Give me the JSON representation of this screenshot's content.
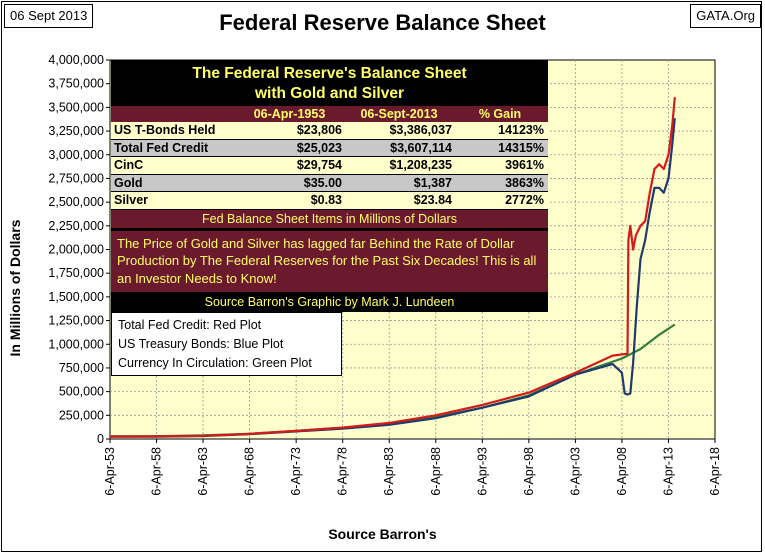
{
  "header": {
    "date": "06 Sept 2013",
    "site": "GATA.Org",
    "title": "Federal Reserve Balance Sheet"
  },
  "chart_data": {
    "type": "line",
    "title": "Federal Reserve Balance Sheet",
    "xlabel": "Source Barron's",
    "ylabel": "In Millions of Dollars",
    "ylim": [
      0,
      4000000
    ],
    "xlim": [
      1953,
      2018
    ],
    "y_ticks": [
      "0",
      "250,000",
      "500,000",
      "750,000",
      "1,000,000",
      "1,250,000",
      "1,500,000",
      "1,750,000",
      "2,000,000",
      "2,250,000",
      "2,500,000",
      "2,750,000",
      "3,000,000",
      "3,250,000",
      "3,500,000",
      "3,750,000",
      "4,000,000"
    ],
    "x_ticks": [
      "6-Apr-53",
      "6-Apr-58",
      "6-Apr-63",
      "6-Apr-68",
      "6-Apr-73",
      "6-Apr-78",
      "6-Apr-83",
      "6-Apr-88",
      "6-Apr-93",
      "6-Apr-98",
      "6-Apr-03",
      "6-Apr-08",
      "6-Apr-13",
      "6-Apr-18"
    ],
    "series": [
      {
        "name": "Total Fed Credit",
        "color": "#d41a1a",
        "x": [
          1953,
          1958,
          1963,
          1968,
          1973,
          1978,
          1983,
          1988,
          1993,
          1998,
          2003,
          2007,
          2008.6,
          2008.7,
          2008.9,
          2009.2,
          2009.5,
          2010,
          2010.5,
          2011,
          2011.5,
          2012,
          2012.5,
          2013,
          2013.4,
          2013.68
        ],
        "y": [
          25023,
          27000,
          34000,
          55000,
          85000,
          120000,
          170000,
          250000,
          360000,
          490000,
          700000,
          880000,
          900000,
          2100000,
          2250000,
          2000000,
          2150000,
          2250000,
          2300000,
          2600000,
          2850000,
          2900000,
          2850000,
          3000000,
          3300000,
          3607114
        ]
      },
      {
        "name": "US Treasury Bonds",
        "color": "#1f3a6b",
        "x": [
          1953,
          1958,
          1963,
          1968,
          1973,
          1978,
          1983,
          1988,
          1993,
          1998,
          2003,
          2007,
          2008,
          2008.3,
          2008.6,
          2008.9,
          2009.2,
          2009.6,
          2010,
          2010.5,
          2011,
          2011.5,
          2012,
          2012.5,
          2013,
          2013.4,
          2013.68
        ],
        "y": [
          23806,
          25000,
          32000,
          52000,
          80000,
          110000,
          150000,
          220000,
          330000,
          450000,
          680000,
          790000,
          700000,
          480000,
          470000,
          480000,
          800000,
          1400000,
          1900000,
          2100000,
          2400000,
          2650000,
          2650000,
          2600000,
          2750000,
          3100000,
          3386037
        ]
      },
      {
        "name": "Currency In Circulation",
        "color": "#2e7d3a",
        "x": [
          1953,
          1958,
          1963,
          1968,
          1973,
          1978,
          1983,
          1988,
          1993,
          1998,
          2003,
          2008,
          2010,
          2012,
          2013.68
        ],
        "y": [
          29754,
          30000,
          38000,
          55000,
          85000,
          120000,
          165000,
          230000,
          330000,
          460000,
          680000,
          850000,
          950000,
          1100000,
          1208235
        ]
      }
    ]
  },
  "table": {
    "title_line1": "The Federal Reserve's Balance Sheet",
    "title_line2": "with Gold and Silver",
    "headers": [
      "",
      "06-Apr-1953",
      "06-Sept-2013",
      "% Gain"
    ],
    "rows": [
      [
        "US T-Bonds Held",
        "$23,806",
        "$3,386,037",
        "14123%"
      ],
      [
        "Total Fed Credit",
        "$25,023",
        "$3,607,114",
        "14315%"
      ],
      [
        "CinC",
        "$29,754",
        "$1,208,235",
        "3961%"
      ],
      [
        "Gold",
        "$35.00",
        "$1,387",
        "3863%"
      ],
      [
        "Silver",
        "$0.83",
        "$23.84",
        "2772%"
      ]
    ],
    "note": "Fed Balance Sheet Items in Millions of Dollars",
    "message": "The Price of Gold and Silver has lagged far Behind the Rate of Dollar Production by The Federal Reserves for the Past Six Decades!  This is all an Investor Needs to Know!",
    "source": "Source Barron's    Graphic by Mark J. Lundeen"
  },
  "legend": {
    "items": [
      "Total Fed Credit:  Red Plot",
      "US Treasury Bonds: Blue Plot",
      "Currency In Circulation: Green Plot"
    ]
  }
}
